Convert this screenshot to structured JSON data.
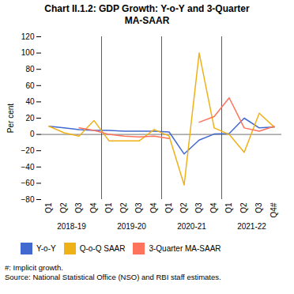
{
  "chart_data": {
    "type": "line",
    "title": "Chart II.1.2: GDP Growth: Y-o-Y and 3-Quarter\nMA-SAAR",
    "ylabel": "Per cent",
    "categories": [
      "Q1",
      "Q2",
      "Q3",
      "Q4",
      "Q1",
      "Q2",
      "Q3",
      "Q4",
      "Q1",
      "Q2",
      "Q3",
      "Q4",
      "Q1",
      "Q2",
      "Q3",
      "Q4#"
    ],
    "group_labels": [
      "2018-19",
      "2019-20",
      "2020-21",
      "2021-22"
    ],
    "series": [
      {
        "name": "Y-o-Y",
        "values": [
          10,
          8,
          6,
          5,
          5,
          4,
          4,
          4,
          3,
          -24,
          -7,
          0.5,
          1,
          20,
          8,
          9
        ]
      },
      {
        "name": "Q-o-Q SAAR",
        "values": [
          10,
          2,
          -2,
          17,
          -8,
          -8,
          -8,
          6,
          -2,
          -62,
          100,
          8,
          0,
          -22,
          26,
          9
        ]
      },
      {
        "name": "3-Quarter MA-SAAR",
        "values": [
          null,
          null,
          8,
          5,
          0,
          -2,
          -3,
          -2,
          -5,
          null,
          15,
          22,
          45,
          8,
          4,
          10
        ]
      }
    ],
    "ylim": [
      -80,
      120
    ],
    "yticks": [
      -80,
      -60,
      -40,
      -20,
      0,
      20,
      40,
      60,
      80,
      100,
      120
    ],
    "grid": false,
    "legend": "bottom",
    "footnotes": [
      "#: Implicit growth.",
      "Source: National Statistical Office (NSO) and RBI staff estimates."
    ]
  }
}
